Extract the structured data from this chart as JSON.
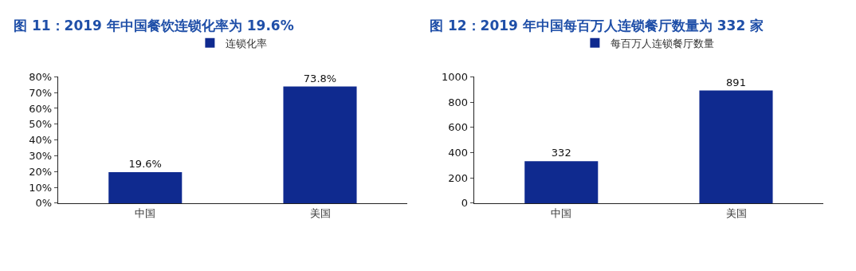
{
  "chart_data": [
    {
      "type": "bar",
      "title": "图 11：2019 年中国餐饮连锁化率为 19.6%",
      "categories": [
        "中国",
        "美国"
      ],
      "series": [
        {
          "name": "连锁化率",
          "color": "#0f2a8f",
          "values": [
            19.6,
            73.8
          ],
          "value_labels": [
            "19.6%",
            "73.8%"
          ]
        }
      ],
      "ylim": [
        0,
        80
      ],
      "yticks": [
        {
          "value": 0,
          "label": "0%"
        },
        {
          "value": 10,
          "label": "10%"
        },
        {
          "value": 20,
          "label": "20%"
        },
        {
          "value": 30,
          "label": "30%"
        },
        {
          "value": 40,
          "label": "40%"
        },
        {
          "value": 50,
          "label": "50%"
        },
        {
          "value": 60,
          "label": "60%"
        },
        {
          "value": 70,
          "label": "70%"
        },
        {
          "value": 80,
          "label": "80%"
        }
      ],
      "legend": "top"
    },
    {
      "type": "bar",
      "title": "图 12：2019 年中国每百万人连锁餐厅数量为 332 家",
      "categories": [
        "中国",
        "美国"
      ],
      "series": [
        {
          "name": "每百万人连锁餐厅数量",
          "color": "#0f2a8f",
          "values": [
            332,
            891
          ]
        }
      ],
      "ylim": [
        0,
        1000
      ],
      "yticks": [
        0,
        200,
        400,
        600,
        800,
        1000
      ],
      "legend": "top",
      "data_labels": true
    }
  ]
}
